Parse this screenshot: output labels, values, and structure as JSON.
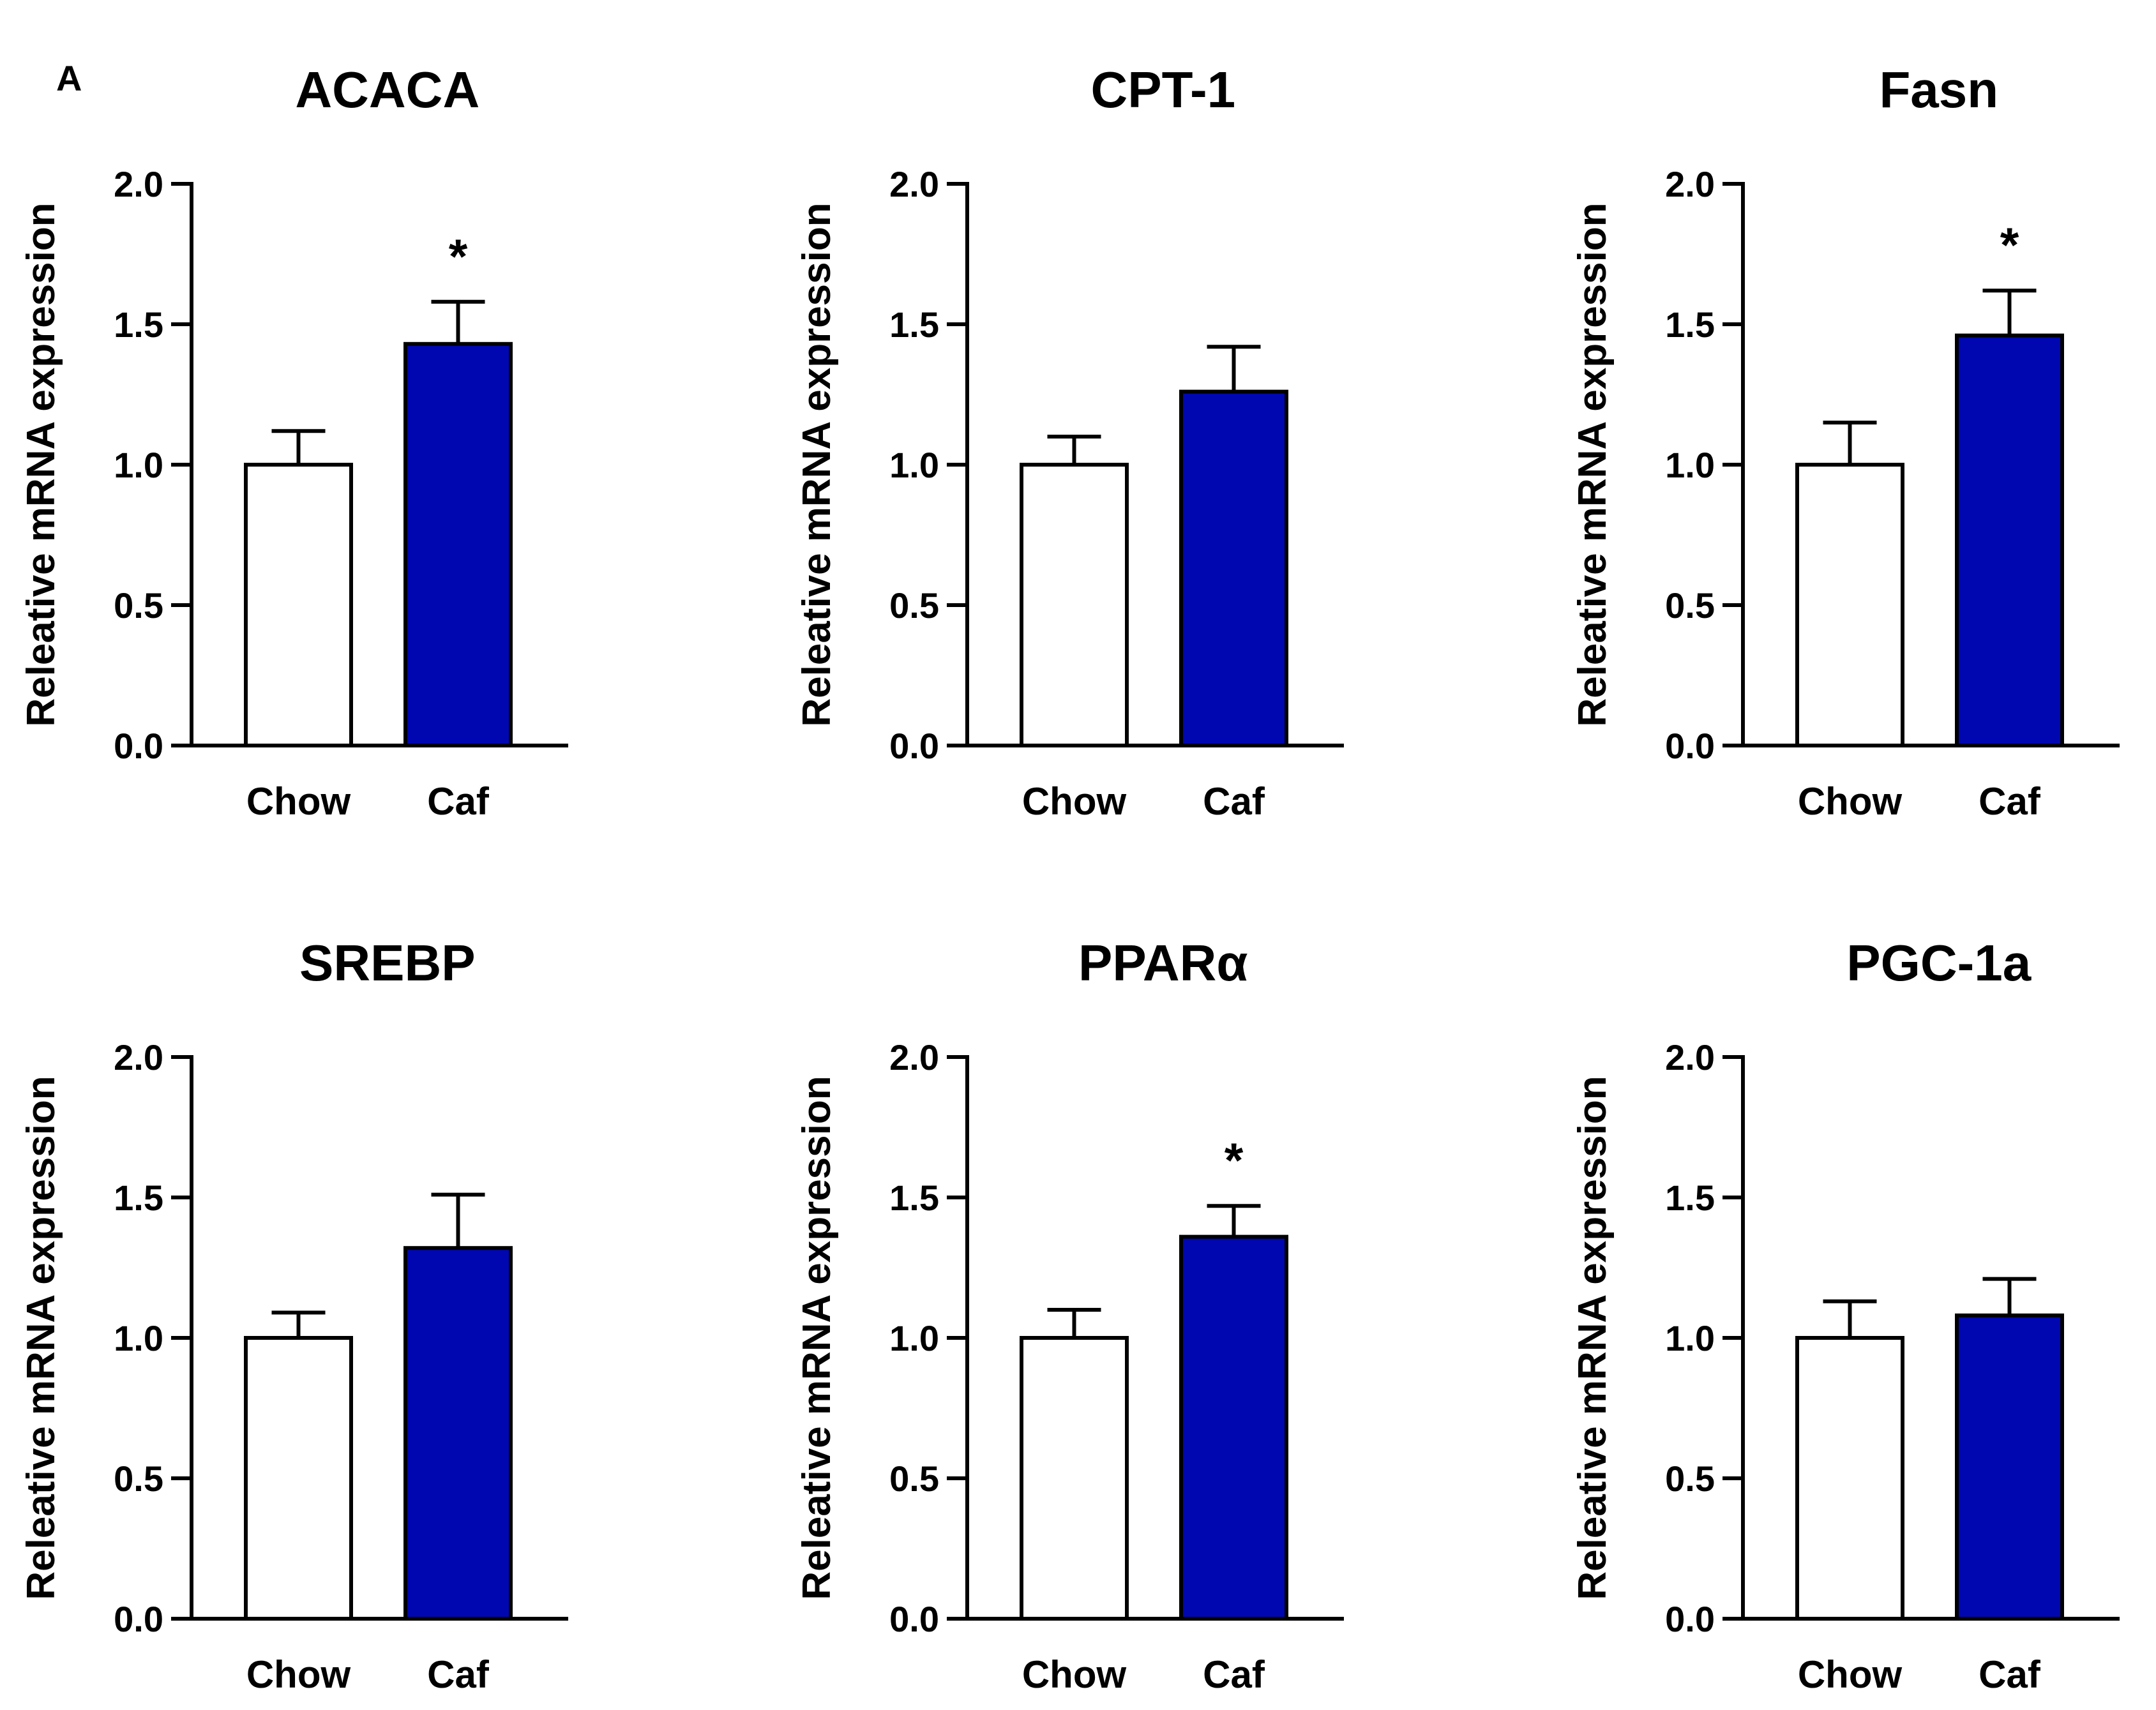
{
  "panel_label": "A",
  "colors": {
    "chow_fill": "#ffffff",
    "caf_fill": "#0007b0",
    "stroke": "#000000"
  },
  "chart_data": [
    {
      "type": "bar",
      "title": "ACACA",
      "ylabel": "Releative mRNA expression",
      "xlabel": "",
      "categories": [
        "Chow",
        "Caf"
      ],
      "values": [
        1.0,
        1.43
      ],
      "errors": [
        0.12,
        0.15
      ],
      "significance": [
        "",
        "*"
      ],
      "ylim": [
        0,
        2.0
      ],
      "yticks": [
        "0.0",
        "0.5",
        "1.0",
        "1.5",
        "2.0"
      ]
    },
    {
      "type": "bar",
      "title": "CPT-1",
      "ylabel": "Releative mRNA expression",
      "xlabel": "",
      "categories": [
        "Chow",
        "Caf"
      ],
      "values": [
        1.0,
        1.26
      ],
      "errors": [
        0.1,
        0.16
      ],
      "significance": [
        "",
        ""
      ],
      "ylim": [
        0,
        2.0
      ],
      "yticks": [
        "0.0",
        "0.5",
        "1.0",
        "1.5",
        "2.0"
      ]
    },
    {
      "type": "bar",
      "title": "Fasn",
      "ylabel": "Releative mRNA expression",
      "xlabel": "",
      "categories": [
        "Chow",
        "Caf"
      ],
      "values": [
        1.0,
        1.46
      ],
      "errors": [
        0.15,
        0.16
      ],
      "significance": [
        "",
        "*"
      ],
      "ylim": [
        0,
        2.0
      ],
      "yticks": [
        "0.0",
        "0.5",
        "1.0",
        "1.5",
        "2.0"
      ]
    },
    {
      "type": "bar",
      "title": "SREBP",
      "ylabel": "Releative mRNA expression",
      "xlabel": "",
      "categories": [
        "Chow",
        "Caf"
      ],
      "values": [
        1.0,
        1.32
      ],
      "errors": [
        0.09,
        0.19
      ],
      "significance": [
        "",
        ""
      ],
      "ylim": [
        0,
        2.0
      ],
      "yticks": [
        "0.0",
        "0.5",
        "1.0",
        "1.5",
        "2.0"
      ]
    },
    {
      "type": "bar",
      "title": "PPARα",
      "ylabel": "Releative mRNA expression",
      "xlabel": "",
      "categories": [
        "Chow",
        "Caf"
      ],
      "values": [
        1.0,
        1.36
      ],
      "errors": [
        0.1,
        0.11
      ],
      "significance": [
        "",
        "*"
      ],
      "ylim": [
        0,
        2.0
      ],
      "yticks": [
        "0.0",
        "0.5",
        "1.0",
        "1.5",
        "2.0"
      ]
    },
    {
      "type": "bar",
      "title": "PGC-1a",
      "ylabel": "Releative mRNA expression",
      "xlabel": "",
      "categories": [
        "Chow",
        "Caf"
      ],
      "values": [
        1.0,
        1.08
      ],
      "errors": [
        0.13,
        0.13
      ],
      "significance": [
        "",
        ""
      ],
      "ylim": [
        0,
        2.0
      ],
      "yticks": [
        "0.0",
        "0.5",
        "1.0",
        "1.5",
        "2.0"
      ]
    }
  ]
}
